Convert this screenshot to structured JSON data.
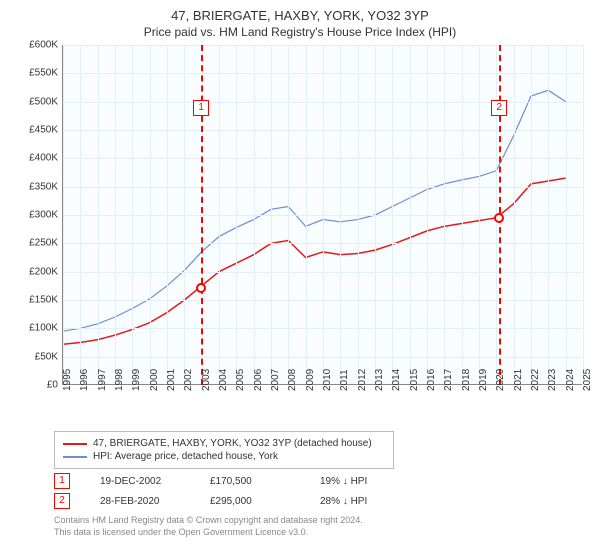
{
  "header": {
    "title": "47, BRIERGATE, HAXBY, YORK, YO32 3YP",
    "subtitle": "Price paid vs. HM Land Registry's House Price Index (HPI)"
  },
  "chart": {
    "type": "line",
    "background_color": "#fafdff",
    "grid_color": "#e6eef5",
    "axis_color": "#888888",
    "ylim": [
      0,
      600000
    ],
    "ytick_step": 50000,
    "yticks": [
      "£0",
      "£50K",
      "£100K",
      "£150K",
      "£200K",
      "£250K",
      "£300K",
      "£350K",
      "£400K",
      "£450K",
      "£500K",
      "£550K",
      "£600K"
    ],
    "xlim": [
      1995,
      2025
    ],
    "xticks": [
      1995,
      1996,
      1997,
      1998,
      1999,
      2000,
      2001,
      2002,
      2003,
      2004,
      2005,
      2006,
      2007,
      2008,
      2009,
      2010,
      2011,
      2012,
      2013,
      2014,
      2015,
      2016,
      2017,
      2018,
      2019,
      2020,
      2021,
      2022,
      2023,
      2024,
      2025
    ],
    "series": [
      {
        "id": "price_paid",
        "label": "47, BRIERGATE, HAXBY, YORK, YO32 3YP (detached house)",
        "color": "#e31a1c",
        "line_width": 1.5,
        "x": [
          1995,
          1996,
          1997,
          1998,
          1999,
          2000,
          2001,
          2002,
          2003,
          2004,
          2005,
          2006,
          2007,
          2008,
          2009,
          2010,
          2011,
          2012,
          2013,
          2014,
          2015,
          2016,
          2017,
          2018,
          2019,
          2020,
          2021,
          2022,
          2023,
          2024
        ],
        "y": [
          72000,
          75000,
          80000,
          88000,
          98000,
          110000,
          128000,
          150000,
          175000,
          200000,
          215000,
          230000,
          250000,
          255000,
          225000,
          235000,
          230000,
          232000,
          238000,
          248000,
          260000,
          272000,
          280000,
          285000,
          290000,
          295000,
          320000,
          355000,
          360000,
          365000
        ]
      },
      {
        "id": "hpi",
        "label": "HPI: Average price, detached house, York",
        "color": "#6a8fd4",
        "line_width": 1.2,
        "x": [
          1995,
          1996,
          1997,
          1998,
          1999,
          2000,
          2001,
          2002,
          2003,
          2004,
          2005,
          2006,
          2007,
          2008,
          2009,
          2010,
          2011,
          2012,
          2013,
          2014,
          2015,
          2016,
          2017,
          2018,
          2019,
          2020,
          2021,
          2022,
          2023,
          2024
        ],
        "y": [
          95000,
          100000,
          108000,
          120000,
          135000,
          152000,
          175000,
          202000,
          235000,
          262000,
          278000,
          292000,
          310000,
          315000,
          280000,
          292000,
          288000,
          292000,
          300000,
          315000,
          330000,
          345000,
          355000,
          362000,
          368000,
          378000,
          440000,
          510000,
          520000,
          500000
        ]
      }
    ],
    "markers": [
      {
        "n": "1",
        "x": 2002.97,
        "box_y": 55,
        "dot_y": 170500
      },
      {
        "n": "2",
        "x": 2020.16,
        "box_y": 55,
        "dot_y": 295000
      }
    ]
  },
  "legend": {
    "items": [
      {
        "color": "#e31a1c",
        "label": "47, BRIERGATE, HAXBY, YORK, YO32 3YP (detached house)"
      },
      {
        "color": "#6a8fd4",
        "label": "HPI: Average price, detached house, York"
      }
    ]
  },
  "transactions": [
    {
      "n": "1",
      "date": "19-DEC-2002",
      "price": "£170,500",
      "delta": "19% ↓ HPI"
    },
    {
      "n": "2",
      "date": "28-FEB-2020",
      "price": "£295,000",
      "delta": "28% ↓ HPI"
    }
  ],
  "attribution": {
    "line1": "Contains HM Land Registry data © Crown copyright and database right 2024.",
    "line2": "This data is licensed under the Open Government Licence v3.0."
  },
  "style": {
    "title_fontsize": 13,
    "subtitle_fontsize": 12,
    "tick_fontsize": 10,
    "legend_fontsize": 10,
    "attrib_fontsize": 9,
    "attrib_color": "#888888",
    "marker_color": "#ff0000"
  }
}
